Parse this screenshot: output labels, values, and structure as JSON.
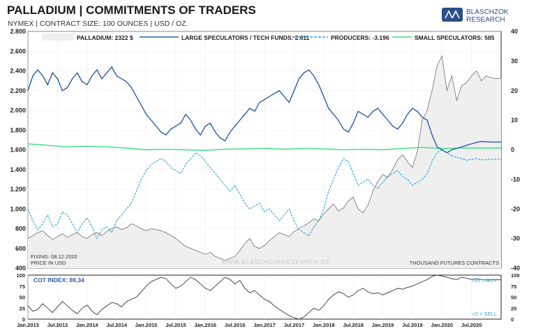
{
  "header": {
    "title": "PALLADIUM | COMMITMENTS OF TRADERS",
    "subtitle": "NYMEX | CONTRACT SIZE: 100 OUNCES | USD / OZ.",
    "logo_line1": "BLASCHZOK",
    "logo_line2": "RESEARCH"
  },
  "notes": {
    "fixing": "FIXING: 08.12.2020",
    "price_unit": "PRICE IN USD",
    "watermark": "WWW.BLASCHZOKRESEARCH.DE",
    "contracts_unit": "THOUSAND FUTURES CONTRACTS",
    "cot_index": "COT INDEX: 89,34",
    "buy_note": ">95 = BUY",
    "sell_note": "<5 = SELL"
  },
  "colors": {
    "price": "#6e6e6e",
    "price_fill": "#efefef",
    "large_specs": "#2a5caa",
    "producers": "#29a3dd",
    "small_specs": "#3ddc84",
    "cot": "#333333"
  },
  "chart_data": [
    {
      "type": "line",
      "x_ticks": [
        "Jan.2013",
        "Jul.2013",
        "Jan.2014",
        "Jul.2014",
        "Jan.2015",
        "Jul.2015",
        "Jan.2016",
        "Jul.2016",
        "Jan.2017",
        "Jul.2017",
        "Jan.2018",
        "Jul.2018",
        "Jan.2019",
        "Jul.2019",
        "Jan.2020",
        "Jul.2020"
      ],
      "y_left": {
        "ticks": [
          "400",
          "600",
          "800",
          "1.000",
          "1.200",
          "1.400",
          "1.600",
          "1.800",
          "2.000",
          "2.200",
          "2.400",
          "2.600",
          "2.800"
        ],
        "range": [
          400,
          2800
        ]
      },
      "y_right": {
        "ticks": [
          "-40",
          "-30",
          "-20",
          "-10",
          "0",
          "10",
          "20",
          "30",
          "40"
        ],
        "range": [
          -40,
          40
        ]
      },
      "series": [
        {
          "name": "PALLADIUM: 2322 $",
          "axis": "left",
          "style": "area",
          "x": [
            0,
            0.5,
            1,
            1.5,
            2,
            2.5,
            3,
            3.5,
            4,
            4.5,
            5,
            5.5,
            6,
            6.5,
            7,
            7.5,
            8,
            8.5,
            9,
            9.5,
            10,
            10.5,
            11,
            11.5,
            12,
            12.5,
            13,
            13.5,
            14,
            14.5,
            15,
            15.5,
            16,
            16.5,
            17,
            17.5,
            18,
            18.5,
            19,
            19.5,
            20,
            20.5,
            21,
            21.5,
            22,
            22.5,
            23,
            23.5,
            24,
            24.5,
            25,
            25.5,
            26,
            26.5,
            27,
            27.5,
            28,
            28.5,
            29,
            29.5,
            30,
            30.5,
            31,
            31.5,
            32,
            32.5,
            33,
            33.5,
            34,
            34.5,
            35,
            35.5,
            36,
            36.5,
            37,
            37.5,
            38,
            38.5,
            39,
            39.5,
            40,
            40.5,
            41,
            41.5,
            42,
            42.5,
            43,
            43.5,
            44,
            44.5,
            45,
            45.5,
            46,
            46.5,
            47,
            47.5,
            48
          ],
          "values": [
            700,
            730,
            760,
            780,
            730,
            690,
            720,
            750,
            710,
            740,
            760,
            720,
            700,
            740,
            760,
            730,
            770,
            800,
            820,
            790,
            810,
            850,
            830,
            800,
            780,
            800,
            790,
            780,
            760,
            730,
            700,
            660,
            620,
            600,
            580,
            560,
            540,
            560,
            520,
            500,
            480,
            500,
            520,
            580,
            650,
            700,
            620,
            600,
            630,
            680,
            720,
            760,
            740,
            720,
            770,
            800,
            830,
            860,
            900,
            880,
            950,
            1000,
            1050,
            980,
            1010,
            1080,
            1120,
            1000,
            960,
            1040,
            1180,
            1280,
            1350,
            1320,
            1400,
            1500,
            1550,
            1480,
            1420,
            1580,
            1900,
            2000,
            2200,
            2450,
            2550,
            2200,
            2350,
            2100,
            2250,
            2280,
            2350,
            2400,
            2300,
            2350,
            2330,
            2322,
            2322
          ]
        },
        {
          "name": "LARGE SPECULATORS / TECH FUNDS: 2.611",
          "axis": "right",
          "style": "line",
          "x": [
            0,
            0.5,
            1,
            1.5,
            2,
            2.5,
            3,
            3.5,
            4,
            4.5,
            5,
            5.5,
            6,
            6.5,
            7,
            7.5,
            8,
            8.5,
            9,
            9.5,
            10,
            10.5,
            11,
            11.5,
            12,
            12.5,
            13,
            13.5,
            14,
            14.5,
            15,
            15.5,
            16,
            16.5,
            17,
            17.5,
            18,
            18.5,
            19,
            19.5,
            20,
            20.5,
            21,
            21.5,
            22,
            22.5,
            23,
            23.5,
            24,
            24.5,
            25,
            25.5,
            26,
            26.5,
            27,
            27.5,
            28,
            28.5,
            29,
            29.5,
            30,
            30.5,
            31,
            31.5,
            32,
            32.5,
            33,
            33.5,
            34,
            34.5,
            35,
            35.5,
            36,
            36.5,
            37,
            37.5,
            38,
            38.5,
            39,
            39.5,
            40,
            40.5,
            41,
            41.5,
            42,
            42.5,
            43,
            43.5,
            44,
            44.5,
            45,
            45.5,
            46,
            46.5,
            47,
            47.5,
            48
          ],
          "values": [
            20,
            25,
            27,
            25,
            22,
            26,
            24,
            20,
            21,
            24,
            26,
            23,
            22,
            25,
            27,
            24,
            26,
            28,
            25,
            24,
            23,
            21,
            18,
            15,
            12,
            10,
            8,
            6,
            5,
            7,
            8,
            9,
            12,
            10,
            7,
            5,
            8,
            9,
            6,
            4,
            3,
            6,
            8,
            10,
            12,
            14,
            13,
            16,
            17,
            18,
            19,
            20,
            18,
            16,
            20,
            24,
            26,
            27,
            25,
            22,
            18,
            14,
            12,
            10,
            7,
            6,
            9,
            13,
            12,
            11,
            13,
            14,
            12,
            10,
            8,
            7,
            9,
            12,
            14,
            13,
            11,
            10,
            5,
            1,
            0,
            -1,
            0,
            0.5,
            1,
            1.5,
            2,
            2.5,
            2.8,
            2.7,
            2.611,
            2.611,
            2.611
          ]
        },
        {
          "name": "PRODUCERS: -3.196",
          "axis": "right",
          "style": "dashed",
          "x": [
            0,
            0.5,
            1,
            1.5,
            2,
            2.5,
            3,
            3.5,
            4,
            4.5,
            5,
            5.5,
            6,
            6.5,
            7,
            7.5,
            8,
            8.5,
            9,
            9.5,
            10,
            10.5,
            11,
            11.5,
            12,
            12.5,
            13,
            13.5,
            14,
            14.5,
            15,
            15.5,
            16,
            16.5,
            17,
            17.5,
            18,
            18.5,
            19,
            19.5,
            20,
            20.5,
            21,
            21.5,
            22,
            22.5,
            23,
            23.5,
            24,
            24.5,
            25,
            25.5,
            26,
            26.5,
            27,
            27.5,
            28,
            28.5,
            29,
            29.5,
            30,
            30.5,
            31,
            31.5,
            32,
            32.5,
            33,
            33.5,
            34,
            34.5,
            35,
            35.5,
            36,
            36.5,
            37,
            37.5,
            38,
            38.5,
            39,
            39.5,
            40,
            40.5,
            41,
            41.5,
            42,
            42.5,
            43,
            43.5,
            44,
            44.5,
            45,
            45.5,
            46,
            46.5,
            47,
            47.5,
            48
          ],
          "values": [
            -20,
            -24,
            -27,
            -25,
            -22,
            -26,
            -25,
            -21,
            -22,
            -25,
            -28,
            -25,
            -23,
            -26,
            -30,
            -27,
            -26,
            -28,
            -24,
            -22,
            -20,
            -18,
            -14,
            -10,
            -7,
            -5,
            -4,
            -3,
            -4,
            -6,
            -7,
            -8,
            -5,
            -3,
            -1,
            -2,
            -4,
            -6,
            -8,
            -10,
            -12,
            -14,
            -12,
            -15,
            -18,
            -20,
            -19,
            -18,
            -21,
            -20,
            -22,
            -24,
            -22,
            -20,
            -24,
            -27,
            -28,
            -29,
            -26,
            -24,
            -20,
            -14,
            -10,
            -6,
            -3,
            -4,
            -8,
            -12,
            -11,
            -10,
            -12,
            -13,
            -11,
            -9,
            -8,
            -7,
            -9,
            -10,
            -12,
            -11,
            -10,
            -8,
            -4,
            -1,
            0,
            -1,
            -2,
            -2.5,
            -3,
            -3.5,
            -3.2,
            -3,
            -3.4,
            -3.3,
            -3.196,
            -3.196,
            -3.196
          ]
        },
        {
          "name": "SMALL SPECULATORS: 585",
          "axis": "right",
          "style": "line",
          "x": [
            0,
            2,
            4,
            6,
            8,
            10,
            12,
            14,
            16,
            18,
            20,
            22,
            24,
            26,
            28,
            30,
            32,
            34,
            36,
            38,
            40,
            42,
            44,
            46,
            48
          ],
          "values": [
            2,
            1.5,
            1,
            1.2,
            1,
            0.6,
            0,
            0.2,
            0,
            -0.2,
            0.2,
            0.3,
            0.5,
            0.2,
            0.5,
            0.3,
            0,
            0.2,
            0,
            0.5,
            0.8,
            0.4,
            0.6,
            0.6,
            0.585
          ]
        }
      ]
    },
    {
      "type": "line",
      "series_name": "COT INDEX: 89,34",
      "y_ticks": [
        "0",
        "25",
        "50",
        "75",
        "100"
      ],
      "y_range": [
        0,
        100
      ],
      "x": [
        0,
        0.5,
        1,
        1.5,
        2,
        2.5,
        3,
        3.5,
        4,
        4.5,
        5,
        5.5,
        6,
        6.5,
        7,
        7.5,
        8,
        8.5,
        9,
        9.5,
        10,
        10.5,
        11,
        11.5,
        12,
        12.5,
        13,
        13.5,
        14,
        14.5,
        15,
        15.5,
        16,
        16.5,
        17,
        17.5,
        18,
        18.5,
        19,
        19.5,
        20,
        20.5,
        21,
        21.5,
        22,
        22.5,
        23,
        23.5,
        24,
        24.5,
        25,
        25.5,
        26,
        26.5,
        27,
        27.5,
        28,
        28.5,
        29,
        29.5,
        30,
        30.5,
        31,
        31.5,
        32,
        32.5,
        33,
        33.5,
        34,
        34.5,
        35,
        35.5,
        36,
        36.5,
        37,
        37.5,
        38,
        38.5,
        39,
        39.5,
        40,
        40.5,
        41,
        41.5,
        42,
        42.5,
        43,
        43.5,
        44,
        44.5,
        45,
        45.5,
        46,
        46.5,
        47,
        47.5,
        48
      ],
      "values": [
        30,
        18,
        22,
        35,
        25,
        15,
        28,
        40,
        30,
        20,
        12,
        25,
        32,
        18,
        10,
        22,
        30,
        38,
        35,
        28,
        40,
        45,
        50,
        62,
        75,
        85,
        90,
        95,
        92,
        80,
        70,
        75,
        85,
        95,
        90,
        80,
        70,
        65,
        75,
        85,
        95,
        90,
        80,
        88,
        70,
        60,
        65,
        55,
        45,
        40,
        30,
        22,
        15,
        8,
        3,
        0,
        5,
        15,
        25,
        20,
        30,
        45,
        55,
        62,
        58,
        50,
        55,
        65,
        70,
        62,
        58,
        60,
        55,
        60,
        65,
        70,
        68,
        72,
        75,
        80,
        85,
        90,
        97,
        100,
        98,
        95,
        92,
        90,
        95,
        93,
        90,
        92,
        90,
        89,
        89.34,
        89.34,
        89.34
      ]
    }
  ]
}
